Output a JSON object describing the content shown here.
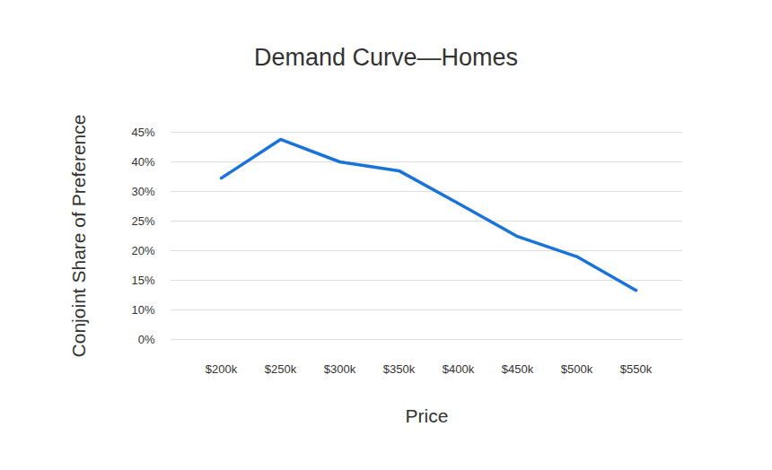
{
  "chart_data": {
    "type": "line",
    "title": "Demand Curve—Homes",
    "x_label": "Price",
    "y_label": "Conjoint Share of Preference",
    "categories": [
      "$200k",
      "$250k",
      "$300k",
      "$350k",
      "$400k",
      "$450k",
      "$500k",
      "$550k"
    ],
    "values": [
      34.5,
      43.8,
      40,
      37,
      28,
      22.4,
      19,
      13.3
    ],
    "color": "#1a73d9",
    "ylim": [
      0,
      45
    ],
    "yticks": [
      {
        "value": 0,
        "label": "0%"
      },
      {
        "value": 10,
        "label": "10%"
      },
      {
        "value": 15,
        "label": "15%"
      },
      {
        "value": 20,
        "label": "20%"
      },
      {
        "value": 25,
        "label": "25%"
      },
      {
        "value": 30,
        "label": "30%"
      },
      {
        "value": 40,
        "label": "40%"
      },
      {
        "value": 45,
        "label": "45%"
      }
    ],
    "grid": true
  }
}
